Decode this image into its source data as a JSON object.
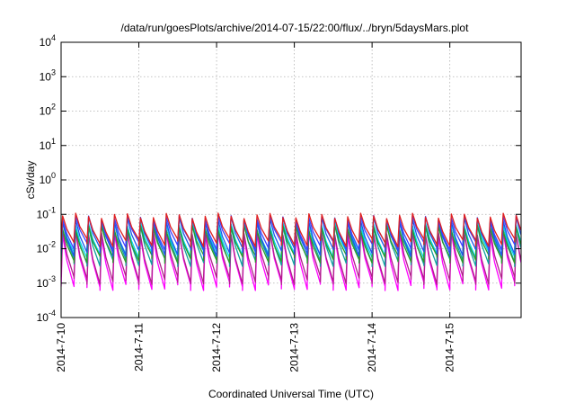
{
  "chart_data": {
    "type": "line",
    "title": "/data/run/goesPlots/archive/2014-07-15/22:00/flux/../bryn/5daysMars.plot",
    "xlabel": "Coordinated Universal Time (UTC)",
    "ylabel": "cSv/day",
    "yscale": "log",
    "ylim": [
      0.0001,
      10000
    ],
    "xlim": [
      "2014-07-10",
      "2014-07-15T22:00"
    ],
    "y_ticks": [
      {
        "exp": "-4",
        "value": 0.0001
      },
      {
        "exp": "-3",
        "value": 0.001
      },
      {
        "exp": "-2",
        "value": 0.01
      },
      {
        "exp": "-1",
        "value": 0.1
      },
      {
        "exp": "0",
        "value": 1
      },
      {
        "exp": "1",
        "value": 10
      },
      {
        "exp": "2",
        "value": 100
      },
      {
        "exp": "3",
        "value": 1000
      },
      {
        "exp": "4",
        "value": 10000
      }
    ],
    "y_tick_base": "10",
    "x_ticks": [
      "2014-7-10",
      "2014-7-11",
      "2014-7-12",
      "2014-7-13",
      "2014-7-14",
      "2014-7-15"
    ],
    "grid": true,
    "legend": "none",
    "cycle_hours": 4,
    "series": [
      {
        "color": "#ff00ff",
        "peak": 0.025,
        "trough": 0.0008
      },
      {
        "color": "#b0208a",
        "peak": 0.03,
        "trough": 0.0012
      },
      {
        "color": "#10a0a0",
        "peak": 0.05,
        "trough": 0.004
      },
      {
        "color": "#00d8e8",
        "peak": 0.055,
        "trough": 0.007
      },
      {
        "color": "#2a9a2a",
        "peak": 0.04,
        "trough": 0.005
      },
      {
        "color": "#1e56e8",
        "peak": 0.07,
        "trough": 0.008
      },
      {
        "color": "#4040ff",
        "peak": 0.08,
        "trough": 0.012
      },
      {
        "color": "#e02020",
        "peak": 0.09,
        "trough": 0.015
      }
    ]
  }
}
